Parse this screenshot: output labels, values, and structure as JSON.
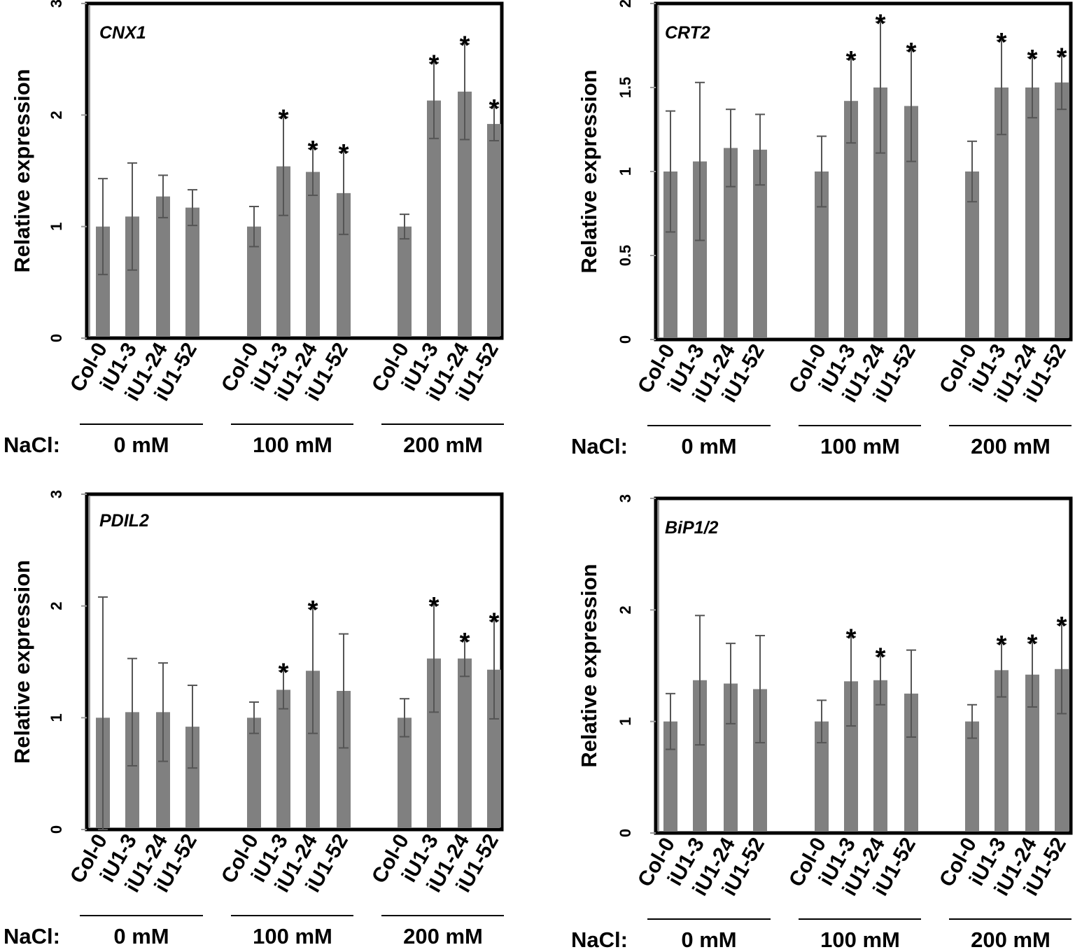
{
  "axis_label": "Relative expression",
  "group_prefix": "NaCl:",
  "groups": [
    "0 mM",
    "100 mM",
    "200 mM"
  ],
  "lines": [
    "Col-0",
    "iU1-3",
    "iU1-24",
    "iU1-52"
  ],
  "colors": {
    "bar": "#808080",
    "error": "#555555",
    "frame": "#000000",
    "axis": "#999999"
  },
  "chart_data": [
    {
      "type": "bar",
      "title": "CNX1",
      "ylabel": "Relative expression",
      "ylim": [
        0,
        3
      ],
      "yticks": [
        0,
        1,
        2,
        3
      ],
      "categories": [
        "Col-0",
        "iU1-3",
        "iU1-24",
        "iU1-52",
        "Col-0",
        "iU1-3",
        "iU1-24",
        "iU1-52",
        "Col-0",
        "iU1-3",
        "iU1-24",
        "iU1-52"
      ],
      "groups": [
        "0 mM",
        "100 mM",
        "200 mM"
      ],
      "values": [
        1.0,
        1.09,
        1.27,
        1.17,
        1.0,
        1.54,
        1.49,
        1.3,
        1.0,
        2.13,
        2.21,
        1.92
      ],
      "errors": [
        0.43,
        0.48,
        0.19,
        0.16,
        0.18,
        0.44,
        0.21,
        0.37,
        0.11,
        0.34,
        0.43,
        0.15
      ],
      "significant": [
        false,
        false,
        false,
        false,
        false,
        true,
        true,
        true,
        false,
        true,
        true,
        true
      ]
    },
    {
      "type": "bar",
      "title": "CRT2",
      "ylabel": "Relative expression",
      "ylim": [
        0,
        2
      ],
      "yticks": [
        0,
        0.5,
        1,
        1.5,
        2
      ],
      "categories": [
        "Col-0",
        "iU1-3",
        "iU1-24",
        "iU1-52",
        "Col-0",
        "iU1-3",
        "iU1-24",
        "iU1-52",
        "Col-0",
        "iU1-3",
        "iU1-24",
        "iU1-52"
      ],
      "groups": [
        "0 mM",
        "100 mM",
        "200 mM"
      ],
      "values": [
        1.0,
        1.06,
        1.14,
        1.13,
        1.0,
        1.42,
        1.5,
        1.39,
        1.0,
        1.5,
        1.5,
        1.53
      ],
      "errors": [
        0.36,
        0.47,
        0.23,
        0.21,
        0.21,
        0.25,
        0.39,
        0.33,
        0.18,
        0.28,
        0.18,
        0.16
      ],
      "significant": [
        false,
        false,
        false,
        false,
        false,
        true,
        true,
        true,
        false,
        true,
        true,
        true
      ]
    },
    {
      "type": "bar",
      "title": "PDIL2",
      "ylabel": "Relative expression",
      "ylim": [
        0,
        3
      ],
      "yticks": [
        0,
        1,
        2,
        3
      ],
      "categories": [
        "Col-0",
        "iU1-3",
        "iU1-24",
        "iU1-52",
        "Col-0",
        "iU1-3",
        "iU1-24",
        "iU1-52",
        "Col-0",
        "iU1-3",
        "iU1-24",
        "iU1-52"
      ],
      "groups": [
        "0 mM",
        "100 mM",
        "200 mM"
      ],
      "values": [
        1.0,
        1.05,
        1.05,
        0.92,
        1.0,
        1.25,
        1.42,
        1.24,
        1.0,
        1.53,
        1.53,
        1.43
      ],
      "errors": [
        1.08,
        0.48,
        0.44,
        0.37,
        0.14,
        0.17,
        0.56,
        0.51,
        0.17,
        0.48,
        0.16,
        0.44
      ],
      "significant": [
        false,
        false,
        false,
        false,
        false,
        true,
        true,
        false,
        false,
        true,
        true,
        true
      ]
    },
    {
      "type": "bar",
      "title": "BiP1/2",
      "ylabel": "Relative expression",
      "ylim": [
        0,
        3
      ],
      "yticks": [
        0,
        1,
        2,
        3
      ],
      "categories": [
        "Col-0",
        "iU1-3",
        "iU1-24",
        "iU1-52",
        "Col-0",
        "iU1-3",
        "iU1-24",
        "iU1-52",
        "Col-0",
        "iU1-3",
        "iU1-24",
        "iU1-52"
      ],
      "groups": [
        "0 mM",
        "100 mM",
        "200 mM"
      ],
      "values": [
        1.0,
        1.37,
        1.34,
        1.29,
        1.0,
        1.36,
        1.37,
        1.25,
        1.0,
        1.46,
        1.42,
        1.47
      ],
      "errors": [
        0.25,
        0.58,
        0.36,
        0.48,
        0.19,
        0.4,
        0.22,
        0.39,
        0.15,
        0.24,
        0.29,
        0.4
      ],
      "significant": [
        false,
        false,
        false,
        false,
        false,
        true,
        true,
        false,
        false,
        true,
        true,
        true
      ]
    }
  ]
}
